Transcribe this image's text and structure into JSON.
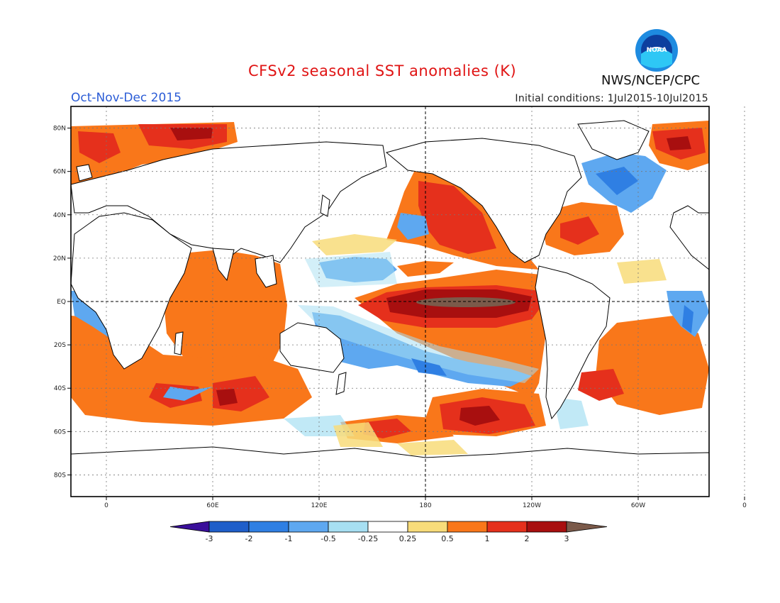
{
  "title": "CFSv2 seasonal SST anomalies (K)",
  "period": "Oct-Nov-Dec 2015",
  "initial_conditions": "Initial conditions: 1Jul2015-10Jul2015",
  "agency": "NWS/NCEP/CPC",
  "logo_text": "NOAA",
  "map": {
    "lon_range": [
      -20,
      340
    ],
    "lat_range": [
      -90,
      90
    ],
    "y_ticks": [
      {
        "lat": 80,
        "label": "80N"
      },
      {
        "lat": 60,
        "label": "60N"
      },
      {
        "lat": 40,
        "label": "40N"
      },
      {
        "lat": 20,
        "label": "20N"
      },
      {
        "lat": 0,
        "label": "EQ"
      },
      {
        "lat": -20,
        "label": "20S"
      },
      {
        "lat": -40,
        "label": "40S"
      },
      {
        "lat": -60,
        "label": "60S"
      },
      {
        "lat": -80,
        "label": "80S"
      }
    ],
    "x_ticks": [
      {
        "lon": 0,
        "label": "0"
      },
      {
        "lon": 60,
        "label": "60E"
      },
      {
        "lon": 120,
        "label": "120E"
      },
      {
        "lon": 180,
        "label": "180"
      },
      {
        "lon": 240,
        "label": "120W"
      },
      {
        "lon": 300,
        "label": "60W"
      },
      {
        "lon": 360,
        "label": "0"
      }
    ]
  },
  "colorbar": {
    "labels": [
      "-3",
      "-2",
      "-1",
      "-0.5",
      "-0.25",
      "0.25",
      "0.5",
      "1",
      "2",
      "3"
    ],
    "colors": [
      "#3a0f9a",
      "#1f5ec9",
      "#2f7fe3",
      "#5ea8f0",
      "#a7dff2",
      "#ffffff",
      "#f8dc7a",
      "#f9771a",
      "#e5301c",
      "#a80f0f",
      "#7b5a4a"
    ]
  }
}
